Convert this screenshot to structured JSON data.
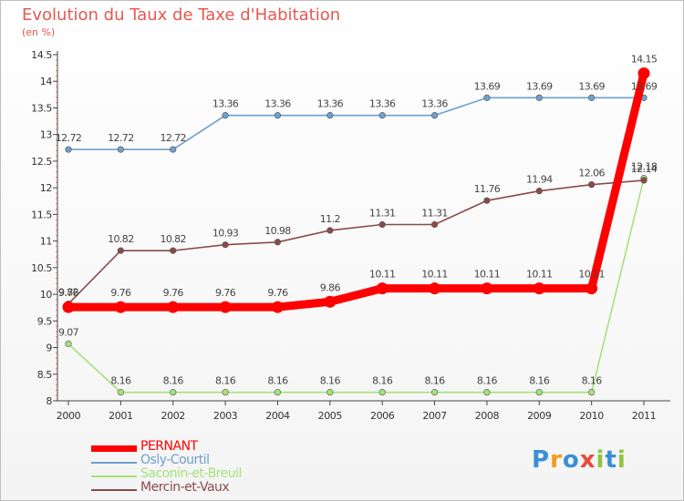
{
  "header": {
    "title": "Evolution du Taux de Taxe d'Habitation",
    "subtitle": "(en %)"
  },
  "chart_data": {
    "type": "line",
    "title": "Evolution du Taux de Taxe d'Habitation",
    "subtitle": "(en %)",
    "xlabel": "",
    "ylabel": "",
    "x": [
      "2000",
      "2001",
      "2002",
      "2003",
      "2004",
      "2005",
      "2006",
      "2007",
      "2008",
      "2009",
      "2010",
      "2011"
    ],
    "ylim": [
      8,
      14.5
    ],
    "yticks": [
      "8",
      "8.5",
      "9",
      "9.5",
      "10",
      "10.5",
      "11",
      "11.5",
      "12",
      "12.5",
      "13",
      "13.5",
      "14",
      "14.5"
    ],
    "grid": false,
    "legend_position": "bottom-left",
    "series": [
      {
        "name": "PERNANT",
        "color": "#ff0000",
        "values": [
          9.76,
          9.76,
          9.76,
          9.76,
          9.76,
          9.86,
          10.11,
          10.11,
          10.11,
          10.11,
          10.11,
          14.15
        ],
        "labels": [
          "9.76",
          "9.76",
          "9.76",
          "9.76",
          "9.76",
          "9.86",
          "10.11",
          "10.11",
          "10.11",
          "10.11",
          "10.11",
          "14.15"
        ]
      },
      {
        "name": "Osly-Courtil",
        "color": "#6ea0cf",
        "values": [
          12.72,
          12.72,
          12.72,
          13.36,
          13.36,
          13.36,
          13.36,
          13.36,
          13.69,
          13.69,
          13.69,
          13.69
        ],
        "labels": [
          "12.72",
          "12.72",
          "12.72",
          "13.36",
          "13.36",
          "13.36",
          "13.36",
          "13.36",
          "13.69",
          "13.69",
          "13.69",
          "13.69"
        ]
      },
      {
        "name": "Saconin-et-Breuil",
        "color": "#a5e27a",
        "values": [
          9.07,
          8.16,
          8.16,
          8.16,
          8.16,
          8.16,
          8.16,
          8.16,
          8.16,
          8.16,
          8.16,
          12.18
        ],
        "labels": [
          "9.07",
          "8.16",
          "8.16",
          "8.16",
          "8.16",
          "8.16",
          "8.16",
          "8.16",
          "8.16",
          "8.16",
          "8.16",
          "12.18"
        ]
      },
      {
        "name": "Mercin-et-Vaux",
        "color": "#8b4a4a",
        "values": [
          9.82,
          10.82,
          10.82,
          10.93,
          10.98,
          11.2,
          11.31,
          11.31,
          11.76,
          11.94,
          12.06,
          12.14
        ],
        "labels": [
          "9.82",
          "10.82",
          "10.82",
          "10.93",
          "10.98",
          "11.2",
          "11.31",
          "11.31",
          "11.76",
          "11.94",
          "12.06",
          "12.14"
        ]
      }
    ]
  },
  "legend": {
    "items": [
      {
        "label": "PERNANT",
        "color": "#ff0000"
      },
      {
        "label": "Osly-Courtil",
        "color": "#6ea0cf"
      },
      {
        "label": "Saconin-et-Breuil",
        "color": "#a5e27a"
      },
      {
        "label": "Mercin-et-Vaux",
        "color": "#8b4a4a"
      }
    ]
  },
  "logo": {
    "text": "Proxiti",
    "letters": [
      "P",
      "r",
      "o",
      "x",
      "i",
      "t",
      "i"
    ],
    "colors": [
      "#3b8fd6",
      "#f29a1e",
      "#3b8fd6",
      "#e84a3c",
      "#8cc63f",
      "#3b8fd6",
      "#8cc63f"
    ]
  }
}
